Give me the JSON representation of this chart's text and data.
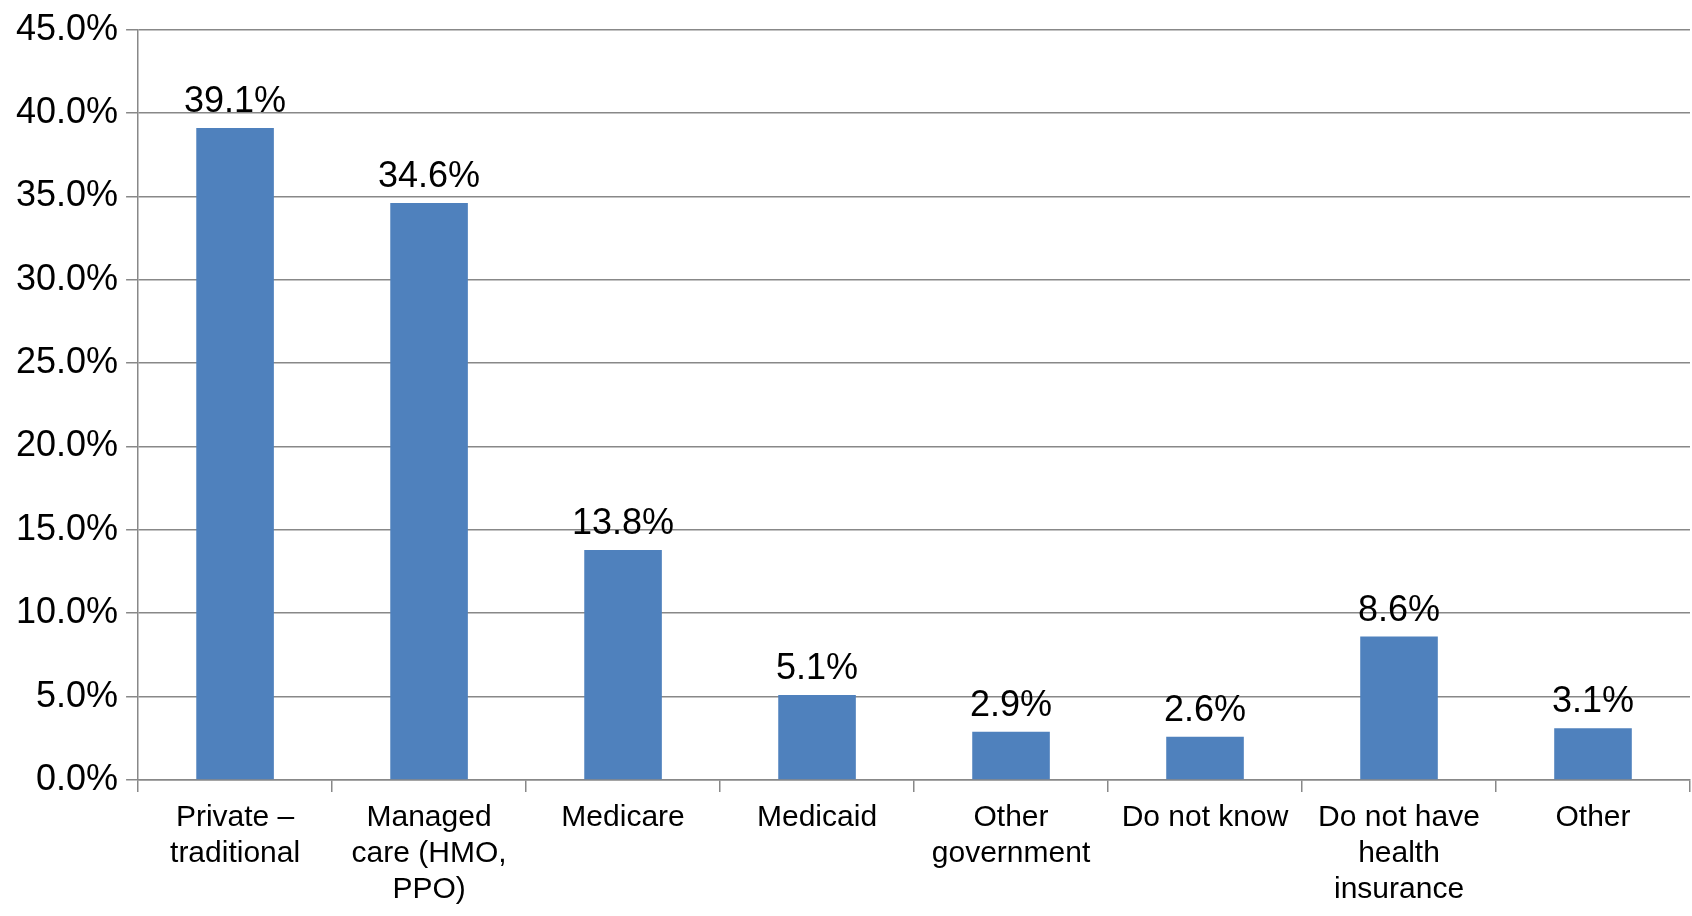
{
  "chart_data": {
    "type": "bar",
    "categories": [
      "Private – traditional",
      "Managed care (HMO, PPO)",
      "Medicare",
      "Medicaid",
      "Other government",
      "Do not know",
      "Do not have health insurance",
      "Other"
    ],
    "values": [
      39.1,
      34.6,
      13.8,
      5.1,
      2.9,
      2.6,
      8.6,
      3.1
    ],
    "value_labels": [
      "39.1%",
      "34.6%",
      "13.8%",
      "5.1%",
      "2.9%",
      "2.6%",
      "8.6%",
      "3.1%"
    ],
    "color": "#4f81bd",
    "ylim": [
      0,
      45
    ],
    "yticks": [
      {
        "value": 0,
        "label": "0.0%"
      },
      {
        "value": 5,
        "label": "5.0%"
      },
      {
        "value": 10,
        "label": "10.0%"
      },
      {
        "value": 15,
        "label": "15.0%"
      },
      {
        "value": 20,
        "label": "20.0%"
      },
      {
        "value": 25,
        "label": "25.0%"
      },
      {
        "value": 30,
        "label": "30.0%"
      },
      {
        "value": 35,
        "label": "35.0%"
      },
      {
        "value": 40,
        "label": "40.0%"
      },
      {
        "value": 45,
        "label": "45.0%"
      }
    ],
    "grid": "y",
    "legend": false
  }
}
